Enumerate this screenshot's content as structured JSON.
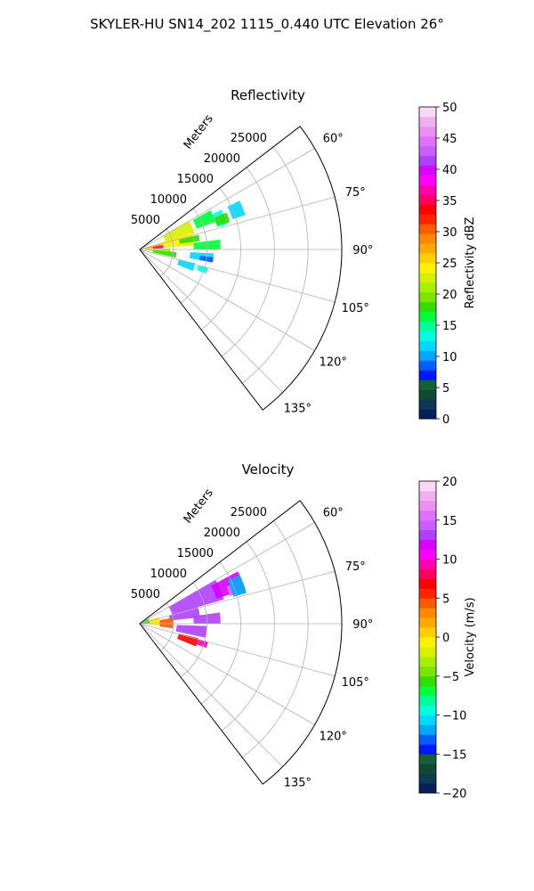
{
  "figure": {
    "suptitle": "SKYLER-HU  SN14_202  1115_0.440 UTC Elevation 26°"
  },
  "chart_data": [
    {
      "type": "heatmap",
      "subtype": "polar-sector-radar-ppi",
      "title": "Reflectivity",
      "radial_axis_label": "Meters",
      "radial_range": [
        0,
        30000
      ],
      "radial_ticks": [
        5000,
        10000,
        15000,
        20000,
        25000
      ],
      "radial_tick_labels": [
        "5000",
        "10000",
        "15000",
        "20000",
        "25000"
      ],
      "azimuth_range_deg": [
        52.5,
        142.5
      ],
      "azimuth_ticks_deg": [
        60,
        75,
        90,
        105,
        120,
        135
      ],
      "azimuth_tick_labels": [
        "60°",
        "75°",
        "90°",
        "105°",
        "120°",
        "135°"
      ],
      "grid": true,
      "colorbar": {
        "label": "Reflectivity dBZ",
        "vmin": 0,
        "vmax": 50,
        "ticks": [
          0,
          5,
          10,
          15,
          20,
          25,
          30,
          35,
          40,
          45,
          50
        ],
        "tick_labels": [
          "0",
          "5",
          "10",
          "15",
          "20",
          "25",
          "30",
          "35",
          "40",
          "45",
          "50"
        ],
        "colors": [
          "#07205a",
          "#0c3a50",
          "#104a30",
          "#15603a",
          "#0018ff",
          "#0060ff",
          "#00a8ff",
          "#00d8ff",
          "#00ffe0",
          "#00ff9a",
          "#00ff3a",
          "#33dd00",
          "#7ae600",
          "#aaee00",
          "#d8f000",
          "#fff000",
          "#ffd000",
          "#ffa800",
          "#ff8800",
          "#ff5a00",
          "#ff2400",
          "#ff0000",
          "#ff0060",
          "#ff00b0",
          "#ff00ff",
          "#d800ff",
          "#b040ff",
          "#c860ff",
          "#e070ff",
          "#ea90ee",
          "#f0b0f0",
          "#f8d8f8"
        ]
      },
      "echoes": [
        {
          "az": [
            61,
            70
          ],
          "r": [
            9000,
            12000
          ],
          "value": 17
        },
        {
          "az": [
            64,
            74
          ],
          "r": [
            12000,
            13500
          ],
          "value": 14
        },
        {
          "az": [
            64,
            72
          ],
          "r": [
            14500,
            16500
          ],
          "value": 12
        },
        {
          "az": [
            67,
            73
          ],
          "r": [
            12000,
            14000
          ],
          "value": 18
        },
        {
          "az": [
            60,
            74
          ],
          "r": [
            4000,
            8500
          ],
          "value": 22
        },
        {
          "az": [
            72,
            86
          ],
          "r": [
            1500,
            8000
          ],
          "value": 24
        },
        {
          "az": [
            74,
            84
          ],
          "r": [
            800,
            3200
          ],
          "value": 28
        },
        {
          "az": [
            79,
            87
          ],
          "r": [
            2000,
            3500
          ],
          "value": 37
        },
        {
          "az": [
            76,
            82
          ],
          "r": [
            6000,
            9000
          ],
          "value": 18
        },
        {
          "az": [
            83,
            90
          ],
          "r": [
            8000,
            12000
          ],
          "value": 16
        },
        {
          "az": [
            88,
            97
          ],
          "r": [
            800,
            4500
          ],
          "value": 21
        },
        {
          "az": [
            94,
            103
          ],
          "r": [
            2000,
            5500
          ],
          "value": 18
        },
        {
          "az": [
            93,
            100
          ],
          "r": [
            7500,
            11000
          ],
          "value": 11
        },
        {
          "az": [
            96,
            100
          ],
          "r": [
            9000,
            11000
          ],
          "value": 8
        },
        {
          "az": [
            104,
            112
          ],
          "r": [
            6000,
            8500
          ],
          "value": 12
        },
        {
          "az": [
            105,
            110
          ],
          "r": [
            9000,
            10500
          ],
          "value": 14
        }
      ]
    },
    {
      "type": "heatmap",
      "subtype": "polar-sector-radar-ppi",
      "title": "Velocity",
      "radial_axis_label": "Meters",
      "radial_range": [
        0,
        30000
      ],
      "radial_ticks": [
        5000,
        10000,
        15000,
        20000,
        25000
      ],
      "radial_tick_labels": [
        "5000",
        "10000",
        "15000",
        "20000",
        "25000"
      ],
      "azimuth_range_deg": [
        52.5,
        142.5
      ],
      "azimuth_ticks_deg": [
        60,
        75,
        90,
        105,
        120,
        135
      ],
      "azimuth_tick_labels": [
        "60°",
        "75°",
        "90°",
        "105°",
        "120°",
        "135°"
      ],
      "grid": true,
      "colorbar": {
        "label": "Velocity (m/s)",
        "vmin": -20,
        "vmax": 20,
        "ticks": [
          -20,
          -15,
          -10,
          -5,
          0,
          5,
          10,
          15,
          20
        ],
        "tick_labels": [
          "−20",
          "−15",
          "−10",
          "−5",
          "0",
          "5",
          "10",
          "15",
          "20"
        ],
        "colors": [
          "#07205a",
          "#0c3a50",
          "#104a30",
          "#15603a",
          "#0018ff",
          "#0060ff",
          "#00a8ff",
          "#00d8ff",
          "#00ffe0",
          "#00ff9a",
          "#00ff3a",
          "#33dd00",
          "#7ae600",
          "#aaee00",
          "#d8f000",
          "#fff000",
          "#ffd000",
          "#ffa800",
          "#ff8800",
          "#ff5a00",
          "#ff2400",
          "#ff0000",
          "#ff0060",
          "#ff00b0",
          "#ff00ff",
          "#d800ff",
          "#b040ff",
          "#c860ff",
          "#e070ff",
          "#ea90ee",
          "#f0b0f0",
          "#f8d8f8"
        ]
      },
      "echoes": [
        {
          "az": [
            60,
            74
          ],
          "r": [
            5000,
            13000
          ],
          "value": 13
        },
        {
          "az": [
            62,
            72
          ],
          "r": [
            12000,
            16500
          ],
          "value": 12
        },
        {
          "az": [
            67,
            73
          ],
          "r": [
            14000,
            16500
          ],
          "value": 16
        },
        {
          "az": [
            74,
            84
          ],
          "r": [
            4500,
            9000
          ],
          "value": 13
        },
        {
          "az": [
            82,
            90
          ],
          "r": [
            8000,
            12000
          ],
          "value": 13
        },
        {
          "az": [
            64,
            74
          ],
          "r": [
            14500,
            16500
          ],
          "value": -12
        },
        {
          "az": [
            60,
            90
          ],
          "r": [
            0,
            1500
          ],
          "value": -6
        },
        {
          "az": [
            70,
            95
          ],
          "r": [
            1500,
            3000
          ],
          "value": -1
        },
        {
          "az": [
            80,
            98
          ],
          "r": [
            3000,
            5000
          ],
          "value": 4
        },
        {
          "az": [
            92,
            102
          ],
          "r": [
            5500,
            10000
          ],
          "value": 13
        },
        {
          "az": [
            104,
            112
          ],
          "r": [
            6000,
            9000
          ],
          "value": 7
        },
        {
          "az": [
            105,
            110
          ],
          "r": [
            9000,
            10500
          ],
          "value": 9
        }
      ]
    }
  ]
}
